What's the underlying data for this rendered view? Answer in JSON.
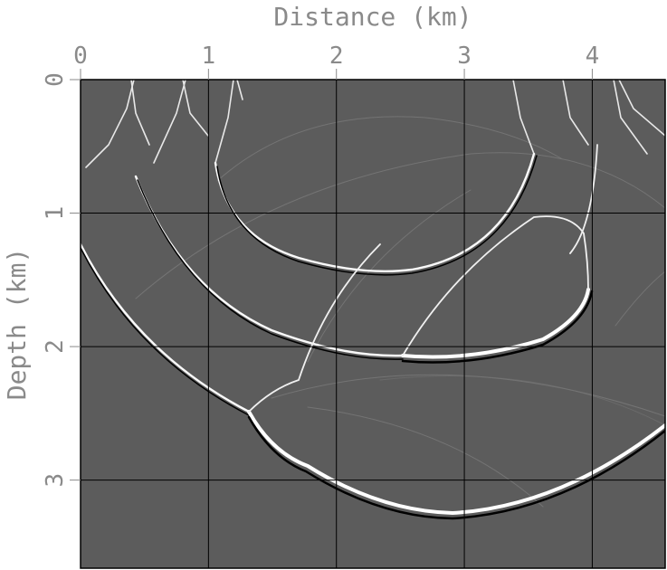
{
  "chart_data": {
    "type": "heatmap",
    "title": "",
    "xlabel": "Distance (km)",
    "ylabel": "Depth (km)",
    "x_ticks": [
      "0",
      "1",
      "2",
      "3",
      "4"
    ],
    "y_ticks": [
      "0",
      "1",
      "2",
      "3"
    ],
    "xlim": [
      0,
      4.57
    ],
    "ylim": [
      0,
      3.66
    ],
    "x_axis_position": "top",
    "y_axis_inverted": true,
    "grid": true,
    "colormap": "grayscale",
    "colors": {
      "background": "#5c5c5c",
      "grid": "#000000",
      "label": "#8a8a8a"
    }
  }
}
